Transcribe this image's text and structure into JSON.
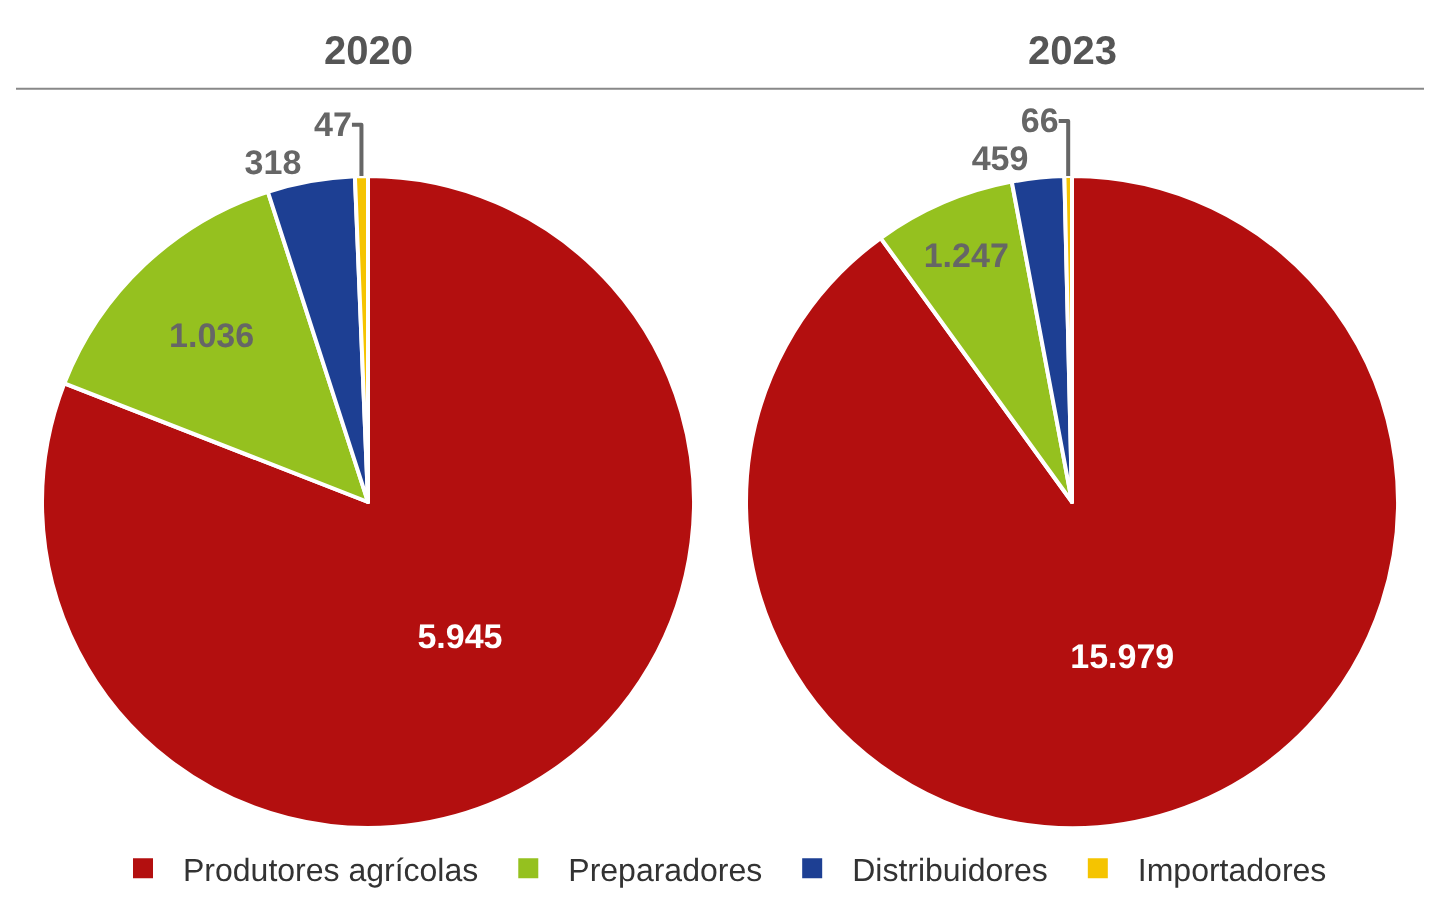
{
  "chart_data": {
    "type": "pie",
    "categories": [
      "Produtores agrícolas",
      "Preparadores",
      "Distribuidores",
      "Importadores"
    ],
    "colors": [
      "#b30f0f",
      "#95c11f",
      "#1d3f93",
      "#f5c400"
    ],
    "legend": "bottom",
    "series": [
      {
        "name": "2020",
        "values": [
          5945,
          1036,
          318,
          47
        ],
        "value_labels": [
          "5.945",
          "1.036",
          "318",
          "47"
        ]
      },
      {
        "name": "2023",
        "values": [
          15979,
          1247,
          459,
          66
        ],
        "value_labels": [
          "15.979",
          "1.247",
          "459",
          "66"
        ]
      }
    ]
  }
}
